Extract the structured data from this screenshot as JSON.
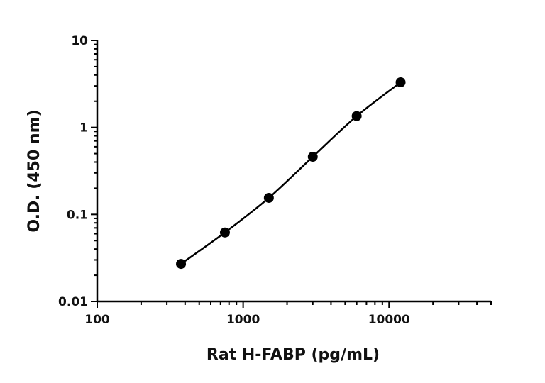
{
  "chart_data": {
    "type": "scatter",
    "xlabel": "Rat H-FABP (pg/mL)",
    "ylabel": "O.D. (450 nm)",
    "x_scale": "log",
    "y_scale": "log",
    "xlim": [
      100,
      50000
    ],
    "ylim": [
      0.01,
      10
    ],
    "x_tick_labels": [
      "100",
      "1000",
      "10000"
    ],
    "y_tick_labels": [
      "0.01",
      "0.1",
      "1",
      "10"
    ],
    "grid": false,
    "legend": "none",
    "points": [
      {
        "x": 375,
        "y": 0.027
      },
      {
        "x": 750,
        "y": 0.062
      },
      {
        "x": 1500,
        "y": 0.155
      },
      {
        "x": 3000,
        "y": 0.46
      },
      {
        "x": 6000,
        "y": 1.35
      },
      {
        "x": 12000,
        "y": 3.3
      }
    ],
    "fit": "smooth curve through points",
    "colors": {
      "marker": "#000000",
      "line": "#000000",
      "axis": "#000000"
    }
  }
}
